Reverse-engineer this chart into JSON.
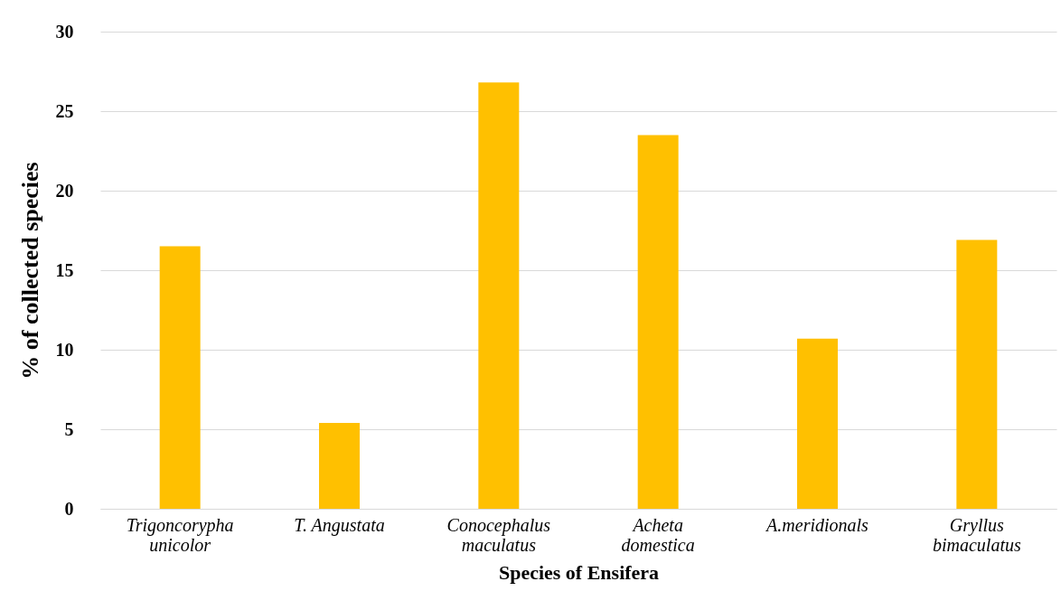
{
  "chart_data": {
    "type": "bar",
    "xlabel": "Species of Ensifera",
    "ylabel": "%  of collected species",
    "categories": [
      "Trigoncorypha\nunicolor",
      "T. Angustata",
      "Conocephalus\nmaculatus",
      "Acheta\ndomestica",
      "A.meridionals",
      "Gryllus\nbimaculatus"
    ],
    "values": [
      16.5,
      5.4,
      26.8,
      23.5,
      10.7,
      16.9
    ],
    "color": "#ffc000",
    "ylim": [
      0,
      30
    ],
    "yticks": [
      0,
      5,
      10,
      15,
      20,
      25,
      30
    ],
    "grid": "y"
  }
}
